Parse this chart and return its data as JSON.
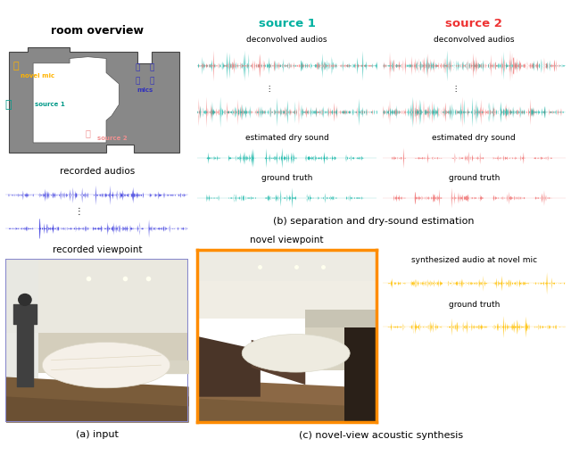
{
  "source1_color": "#00B0A0",
  "source2_color": "#F07070",
  "blue_color": "#3030DD",
  "yellow_color": "#FFC000",
  "bg_waveform": "#ECECEC",
  "room_gray": "#888888",
  "room_dark": "#666666",
  "room_inner_white": "#FFFFFF",
  "caption_b": "(b) separation and dry-sound estimation",
  "caption_a": "(a) input",
  "caption_c": "(c) novel-view acoustic synthesis",
  "label_room": "room overview",
  "label_recorded": "recorded audios",
  "label_viewpoint": "recorded viewpoint",
  "label_novel": "novel viewpoint",
  "label_source1": "source 1",
  "label_source2": "source 2",
  "label_deconv": "deconvolved audios",
  "label_estdry": "estimated dry sound",
  "label_gt": "ground truth",
  "label_synth": "synthesized audio at novel mic",
  "label_novmic": "novel mic",
  "label_mics": "mics",
  "label_src1": "source 1",
  "label_src2": "source 2",
  "fig_width": 6.4,
  "fig_height": 5.2
}
